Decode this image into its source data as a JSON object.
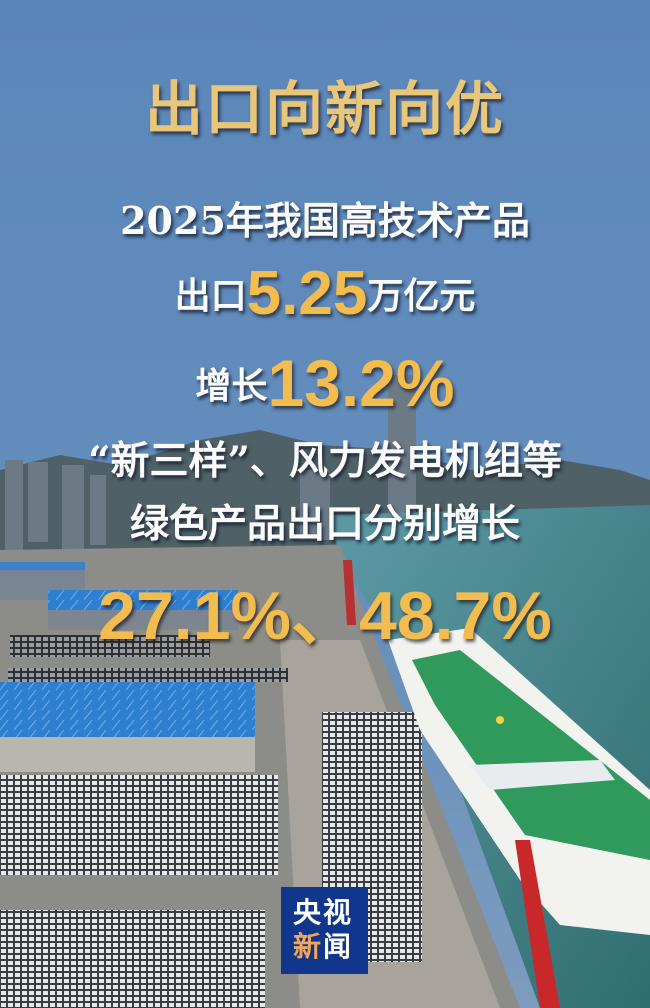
{
  "title": "出口向新向优",
  "lines": {
    "line1": "2025年我国高技术产品",
    "line2_prefix": "出口",
    "line2_value": "5.25",
    "line2_unit": "万亿元",
    "line3_prefix": "增长",
    "line3_value": "13.2%",
    "line4": "“新三样”、风力发电机组等",
    "line5": "绿色产品出口分别增长",
    "line6_value1": "27.1%",
    "line6_sep": "、",
    "line6_value2": "48.7%"
  },
  "logo": {
    "char1": "央",
    "char2": "视",
    "char3": "新",
    "char4": "闻"
  },
  "colors": {
    "gold": "#f2bc4e",
    "logo_bg": "#10378c",
    "logo_accent": "#f0a65c"
  }
}
